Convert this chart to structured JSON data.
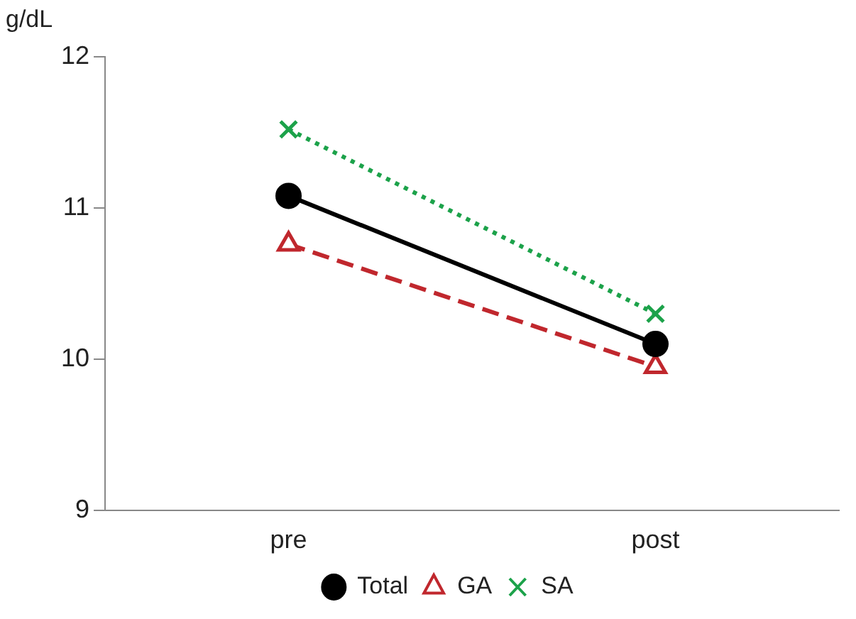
{
  "chart_data": {
    "type": "line",
    "ylabel": "g/dL",
    "categories": [
      "pre",
      "post"
    ],
    "series": [
      {
        "name": "Total",
        "color": "#000000",
        "values": [
          11.08,
          10.1
        ],
        "marker": "circle",
        "line_style": "solid"
      },
      {
        "name": "GA",
        "color": "#c0272d",
        "values": [
          10.76,
          9.95
        ],
        "marker": "triangle",
        "line_style": "dashed"
      },
      {
        "name": "SA",
        "color": "#1ca24a",
        "values": [
          11.52,
          10.3
        ],
        "marker": "cross",
        "line_style": "dotted"
      }
    ],
    "ylim": [
      9,
      12
    ],
    "yticks": [
      9,
      10,
      11,
      12
    ],
    "grid": false,
    "legend": "bottom"
  }
}
